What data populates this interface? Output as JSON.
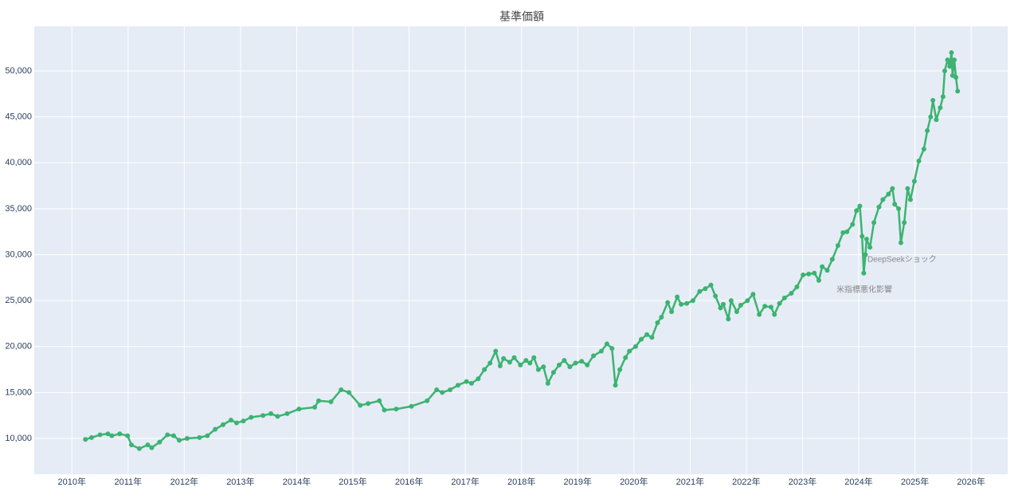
{
  "chart_data": {
    "type": "line",
    "title": "基準価額",
    "annotations": [
      "DeepSeekショック",
      "米指標悪化影響"
    ],
    "grid": true,
    "color": "#3cb371",
    "xlim": [
      2009.33,
      2026.65
    ],
    "xticks": [
      {
        "value": 2010,
        "label": "2010年"
      },
      {
        "value": 2011,
        "label": "2011年"
      },
      {
        "value": 2012,
        "label": "2012年"
      },
      {
        "value": 2013,
        "label": "2013年"
      },
      {
        "value": 2014,
        "label": "2014年"
      },
      {
        "value": 2015,
        "label": "2015年"
      },
      {
        "value": 2016,
        "label": "2016年"
      },
      {
        "value": 2017,
        "label": "2017年"
      },
      {
        "value": 2018,
        "label": "2018年"
      },
      {
        "value": 2019,
        "label": "2019年"
      },
      {
        "value": 2020,
        "label": "2020年"
      },
      {
        "value": 2021,
        "label": "2021年"
      },
      {
        "value": 2022,
        "label": "2022年"
      },
      {
        "value": 2023,
        "label": "2023年"
      },
      {
        "value": 2024,
        "label": "2024年"
      },
      {
        "value": 2025,
        "label": "2025年"
      },
      {
        "value": 2026,
        "label": "2026年"
      }
    ],
    "ylim": [
      6100,
      54860
    ],
    "yticks": [
      {
        "value": 10000,
        "label": "10,000"
      },
      {
        "value": 15000,
        "label": "15,000"
      },
      {
        "value": 20000,
        "label": "20,000"
      },
      {
        "value": 25000,
        "label": "25,000"
      },
      {
        "value": 30000,
        "label": "30,000"
      },
      {
        "value": 35000,
        "label": "35,000"
      },
      {
        "value": 40000,
        "label": "40,000"
      },
      {
        "value": 45000,
        "label": "45,000"
      },
      {
        "value": 50000,
        "label": "50,000"
      }
    ],
    "x": [
      2010.24,
      2010.35,
      2010.5,
      2010.64,
      2010.71,
      2010.85,
      2010.99,
      2011.06,
      2011.2,
      2011.35,
      2011.42,
      2011.56,
      2011.7,
      2011.81,
      2011.91,
      2012.05,
      2012.27,
      2012.41,
      2012.55,
      2012.69,
      2012.83,
      2012.93,
      2013.05,
      2013.19,
      2013.4,
      2013.54,
      2013.66,
      2013.83,
      2014.04,
      2014.32,
      2014.39,
      2014.61,
      2014.79,
      2014.93,
      2015.13,
      2015.27,
      2015.47,
      2015.56,
      2015.77,
      2016.04,
      2016.32,
      2016.49,
      2016.59,
      2016.73,
      2016.87,
      2017.02,
      2017.11,
      2017.23,
      2017.34,
      2017.44,
      2017.54,
      2017.62,
      2017.68,
      2017.79,
      2017.87,
      2017.98,
      2018.08,
      2018.15,
      2018.22,
      2018.3,
      2018.39,
      2018.47,
      2018.57,
      2018.67,
      2018.76,
      2018.86,
      2018.96,
      2019.07,
      2019.17,
      2019.28,
      2019.42,
      2019.52,
      2019.61,
      2019.67,
      2019.75,
      2019.85,
      2019.92,
      2020.03,
      2020.13,
      2020.23,
      2020.32,
      2020.42,
      2020.49,
      2020.6,
      2020.67,
      2020.77,
      2020.84,
      2020.94,
      2021.05,
      2021.17,
      2021.27,
      2021.37,
      2021.45,
      2021.54,
      2021.59,
      2021.68,
      2021.73,
      2021.83,
      2021.9,
      2022.02,
      2022.12,
      2022.23,
      2022.33,
      2022.44,
      2022.5,
      2022.59,
      2022.68,
      2022.8,
      2022.9,
      2023.01,
      2023.11,
      2023.21,
      2023.29,
      2023.35,
      2023.44,
      2023.53,
      2023.63,
      2023.72,
      2023.79,
      2023.89,
      2023.96,
      2024.02,
      2024.06,
      2024.09,
      2024.12,
      2024.14,
      2024.2,
      2024.27,
      2024.36,
      2024.43,
      2024.53,
      2024.6,
      2024.64,
      2024.71,
      2024.75,
      2024.81,
      2024.87,
      2024.92,
      2024.99,
      2025.07,
      2025.16,
      2025.22,
      2025.28,
      2025.32,
      2025.38,
      2025.45,
      2025.5,
      2025.53,
      2025.58,
      2025.62,
      2025.65,
      2025.67,
      2025.7,
      2025.73,
      2025.76
    ],
    "values": [
      9900,
      10100,
      10400,
      10500,
      10300,
      10500,
      10300,
      9300,
      8900,
      9300,
      9000,
      9600,
      10400,
      10300,
      9800,
      10000,
      10100,
      10300,
      11000,
      11500,
      12000,
      11700,
      11900,
      12300,
      12500,
      12700,
      12400,
      12700,
      13200,
      13400,
      14100,
      14000,
      15300,
      15000,
      13600,
      13800,
      14100,
      13100,
      13200,
      13500,
      14100,
      15300,
      15000,
      15300,
      15800,
      16200,
      16000,
      16500,
      17500,
      18200,
      19500,
      17900,
      18700,
      18300,
      18800,
      18000,
      18500,
      18200,
      18800,
      17500,
      17800,
      16000,
      17200,
      18000,
      18500,
      17800,
      18200,
      18400,
      18000,
      19000,
      19500,
      20300,
      19800,
      15800,
      17500,
      18800,
      19500,
      20000,
      20800,
      21300,
      21000,
      22600,
      23200,
      24800,
      23800,
      25400,
      24600,
      24700,
      25000,
      26000,
      26300,
      26700,
      25500,
      24200,
      24600,
      23000,
      25000,
      23800,
      24500,
      25000,
      25700,
      23500,
      24400,
      24300,
      23500,
      24700,
      25300,
      25800,
      26500,
      27800,
      27900,
      28000,
      27200,
      28700,
      28300,
      29500,
      31000,
      32400,
      32500,
      33300,
      34800,
      35300,
      32000,
      28000,
      30000,
      31700,
      30800,
      33500,
      35200,
      36000,
      36600,
      37200,
      35500,
      35000,
      31300,
      33500,
      37200,
      36000,
      38000,
      40200,
      41500,
      43500,
      45000,
      46800,
      44700,
      46000,
      47200,
      50000,
      51200,
      50500,
      52000,
      49500,
      51200,
      49300,
      47800
    ]
  }
}
